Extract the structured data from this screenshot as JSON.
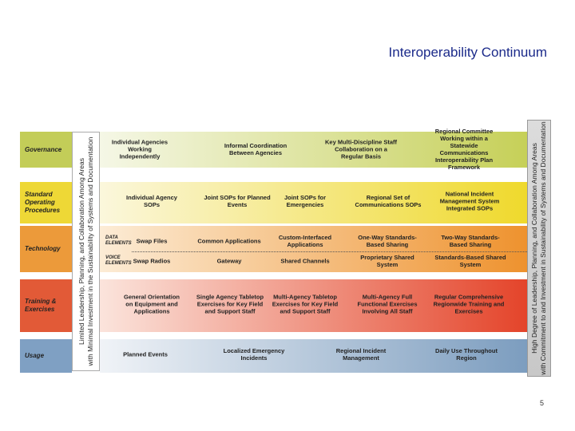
{
  "title": "Interoperability Continuum",
  "left_axis": [
    "Limited Leadership, Planning, and Collaboration Among Areas",
    "with Minimal Investment in the Sustainability of Systems and Documentation"
  ],
  "right_axis": [
    "High Degree of Leadership, Planning, and Collaboration Among Areas",
    "with Commitment to and Investment in Sustainability of Systems and Documentation"
  ],
  "rows": [
    {
      "label": "Governance",
      "items": [
        "Individual Agencies Working Independently",
        "Informal Coordination Between Agencies",
        "Key Multi-Discipline Staff Collaboration on a Regular Basis",
        "Regional Committee Working within a Statewide Communications Interoperability Plan Framework"
      ]
    },
    {
      "label": "Standard Operating Procedures",
      "items": [
        "Individual Agency SOPs",
        "Joint SOPs for Planned Events",
        "Joint SOPs for Emergencies",
        "Regional Set of Communications SOPs",
        "National Incident Management System Integrated SOPs"
      ]
    },
    {
      "label": "Technology",
      "sublanes": [
        {
          "label": "DATA ELEMENTS",
          "items": [
            "Swap Files",
            "Common Applications",
            "Custom-Interfaced Applications",
            "One-Way Standards-Based Sharing",
            "Two-Way Standards-Based Sharing"
          ]
        },
        {
          "label": "VOICE ELEMENTS",
          "items": [
            "Swap Radios",
            "Gateway",
            "Shared Channels",
            "Proprietary Shared System",
            "Standards-Based Shared System"
          ]
        }
      ]
    },
    {
      "label": "Training & Exercises",
      "items": [
        "General Orientation on Equipment and Applications",
        "Single Agency Tabletop Exercises for Key Field and Support Staff",
        "Multi-Agency Tabletop Exercises for Key Field and Support Staff",
        "Multi-Agency Full Functional Exercises Involving All Staff",
        "Regular Comprehensive Regionwide Training and Exercises"
      ]
    },
    {
      "label": "Usage",
      "items": [
        "Planned Events",
        "Localized Emergency Incidents",
        "Regional Incident Management",
        "Daily Use Throughout Region"
      ]
    }
  ],
  "page_number": "5"
}
